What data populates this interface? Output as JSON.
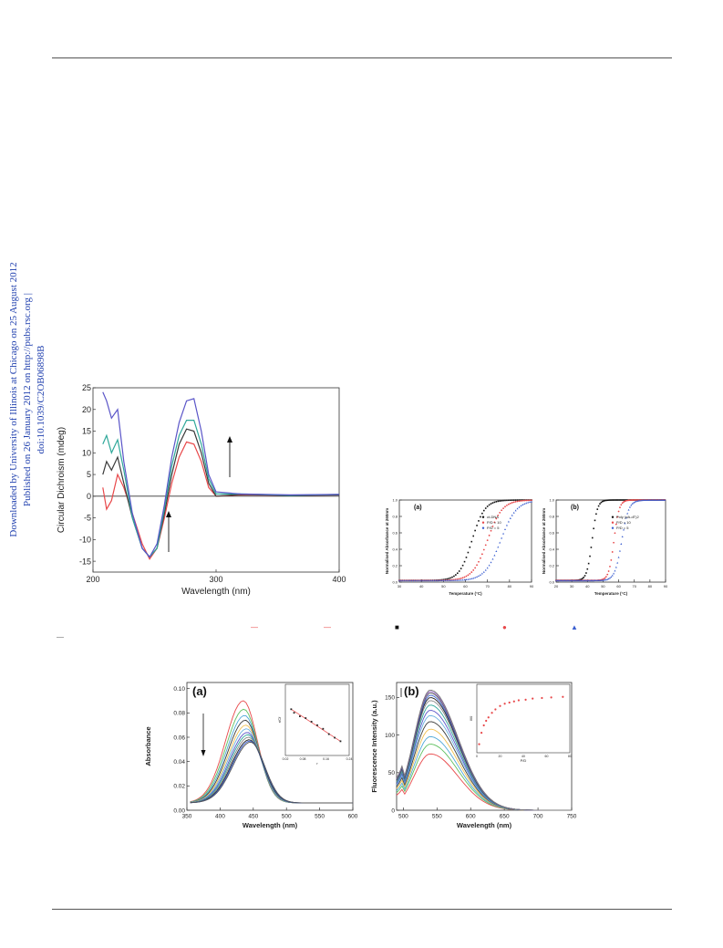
{
  "sidebar": {
    "line1": "Downloaded by University of Illinois at Chicago on 25 August 2012",
    "line2": "Published on 26 January 2012 on http://pubs.rsc.org | doi:10.1039/C2OB06898B"
  },
  "markers": [
    "—",
    "—",
    "■",
    "●",
    "▲"
  ],
  "colors": {
    "red": "#e8484a",
    "black": "#3a3a3a",
    "teal": "#2fa89a",
    "purple": "#5a55c8",
    "blue": "#3b5fd0"
  },
  "chart_data": [
    {
      "id": "cd",
      "type": "line",
      "xlabel": "Wavelength (nm)",
      "ylabel": "Circular Dichroism (mdeg)",
      "xlim": [
        200,
        400
      ],
      "ylim": [
        -17.5,
        25
      ],
      "xticks": [
        200,
        300,
        400
      ],
      "yticks": [
        -15,
        -10,
        -5,
        0,
        5,
        10,
        15,
        20,
        25
      ],
      "series": [
        {
          "color": "#e8484a",
          "points": [
            [
              208,
              2
            ],
            [
              211,
              -3
            ],
            [
              215,
              -1
            ],
            [
              220,
              5
            ],
            [
              225,
              2
            ],
            [
              232,
              -4
            ],
            [
              240,
              -11
            ],
            [
              246,
              -14.5
            ],
            [
              252,
              -12
            ],
            [
              258,
              -5
            ],
            [
              264,
              3
            ],
            [
              270,
              9
            ],
            [
              276,
              12.5
            ],
            [
              282,
              12
            ],
            [
              288,
              8
            ],
            [
              294,
              2
            ],
            [
              300,
              0
            ],
            [
              320,
              0.3
            ],
            [
              360,
              0.2
            ],
            [
              400,
              0.3
            ]
          ]
        },
        {
          "color": "#3a3a3a",
          "points": [
            [
              208,
              5
            ],
            [
              211,
              8
            ],
            [
              215,
              6
            ],
            [
              220,
              9
            ],
            [
              225,
              3
            ],
            [
              232,
              -5
            ],
            [
              240,
              -12
            ],
            [
              246,
              -14
            ],
            [
              252,
              -12
            ],
            [
              258,
              -4
            ],
            [
              264,
              5
            ],
            [
              270,
              12
            ],
            [
              276,
              15.5
            ],
            [
              282,
              15
            ],
            [
              288,
              10
            ],
            [
              294,
              3
            ],
            [
              300,
              0
            ],
            [
              320,
              0.4
            ],
            [
              360,
              0.2
            ],
            [
              400,
              0.3
            ]
          ]
        },
        {
          "color": "#2fa89a",
          "points": [
            [
              208,
              12
            ],
            [
              211,
              14
            ],
            [
              215,
              10
            ],
            [
              220,
              13
            ],
            [
              225,
              6
            ],
            [
              232,
              -5
            ],
            [
              240,
              -12
            ],
            [
              246,
              -14
            ],
            [
              252,
              -12
            ],
            [
              258,
              -3
            ],
            [
              264,
              7
            ],
            [
              270,
              14
            ],
            [
              276,
              17.5
            ],
            [
              282,
              17.5
            ],
            [
              288,
              12
            ],
            [
              294,
              4
            ],
            [
              300,
              0.5
            ],
            [
              320,
              0.5
            ],
            [
              360,
              0.2
            ],
            [
              400,
              0.4
            ]
          ]
        },
        {
          "color": "#5a55c8",
          "points": [
            [
              208,
              24
            ],
            [
              211,
              22
            ],
            [
              215,
              18
            ],
            [
              220,
              20
            ],
            [
              225,
              8
            ],
            [
              232,
              -4
            ],
            [
              240,
              -12
            ],
            [
              246,
              -14
            ],
            [
              252,
              -11
            ],
            [
              258,
              -2
            ],
            [
              264,
              9
            ],
            [
              270,
              17
            ],
            [
              276,
              22
            ],
            [
              282,
              22.5
            ],
            [
              288,
              15
            ],
            [
              294,
              5
            ],
            [
              300,
              1
            ],
            [
              320,
              0.5
            ],
            [
              360,
              0.3
            ],
            [
              400,
              0.4
            ]
          ]
        }
      ]
    },
    {
      "id": "melt-a",
      "type": "scatter",
      "panel": "(a)",
      "xlabel": "Temperature (°C)",
      "ylabel": "Normalised Absorbance at 260nm",
      "xlim": [
        30,
        90
      ],
      "ylim": [
        0,
        1.0
      ],
      "xticks": [
        30,
        40,
        50,
        60,
        70,
        80,
        90
      ],
      "yticks": [
        0.0,
        0.2,
        0.4,
        0.6,
        0.8,
        1.0
      ],
      "legend": [
        "ct-DNA",
        "P/D = 10",
        "P/D = 5"
      ],
      "series": [
        {
          "color": "#111111",
          "shape": "square",
          "mid": 63,
          "k": 0.35
        },
        {
          "color": "#e8484a",
          "shape": "circle",
          "mid": 70,
          "k": 0.3
        },
        {
          "color": "#3b5fd0",
          "shape": "triangle",
          "mid": 76,
          "k": 0.28
        }
      ]
    },
    {
      "id": "melt-b",
      "type": "scatter",
      "panel": "(b)",
      "xlabel": "Temperature (°C)",
      "ylabel": "Normalised Absorbance at 260nm",
      "xlim": [
        20,
        90
      ],
      "ylim": [
        0,
        1.0
      ],
      "xticks": [
        20,
        30,
        40,
        50,
        60,
        70,
        80,
        90
      ],
      "yticks": [
        0.0,
        0.2,
        0.4,
        0.6,
        0.8,
        1.0
      ],
      "legend": [
        "Poly (dA-dT)2",
        "P/D = 10",
        "P/D = 5"
      ],
      "series": [
        {
          "color": "#111111",
          "shape": "square",
          "mid": 43,
          "k": 0.6
        },
        {
          "color": "#e8484a",
          "shape": "circle",
          "mid": 57,
          "k": 0.6
        },
        {
          "color": "#3b5fd0",
          "shape": "triangle",
          "mid": 62,
          "k": 0.45
        }
      ]
    },
    {
      "id": "abs",
      "type": "line",
      "panel": "(a)",
      "xlabel": "Wavelength (nm)",
      "ylabel": "Absorbance",
      "xlim": [
        350,
        600
      ],
      "ylim": [
        0,
        0.105
      ],
      "xticks": [
        350,
        400,
        450,
        500,
        550,
        600
      ],
      "yticks": [
        0.0,
        0.02,
        0.04,
        0.06,
        0.08,
        0.1
      ],
      "peaks": [
        0.09,
        0.083,
        0.078,
        0.074,
        0.07,
        0.067,
        0.064,
        0.062,
        0.06,
        0.058,
        0.057,
        0.056
      ],
      "peak_x": [
        435,
        436,
        437,
        438,
        439,
        440,
        441,
        442,
        443,
        444,
        445,
        446
      ],
      "colors": [
        "#e8484a",
        "#5fc05f",
        "#4fa8d8",
        "#3a3a3a",
        "#f0c050",
        "#6ab0e0",
        "#5a55c8",
        "#2fa89a",
        "#888888",
        "#222222",
        "#3b5fd0",
        "#555555"
      ],
      "inset": {
        "xlabel": "r",
        "ylabel": "r/Cf",
        "xlim": [
          0.02,
          0.24
        ],
        "ylim": [
          0.1,
          0.3
        ],
        "xticks": [
          0.02,
          0.08,
          0.16,
          0.24
        ],
        "points": [
          [
            0.04,
            0.23
          ],
          [
            0.05,
            0.22
          ],
          [
            0.07,
            0.21
          ],
          [
            0.09,
            0.205
          ],
          [
            0.11,
            0.195
          ],
          [
            0.13,
            0.185
          ],
          [
            0.15,
            0.175
          ],
          [
            0.17,
            0.16
          ],
          [
            0.19,
            0.15
          ],
          [
            0.21,
            0.14
          ]
        ]
      }
    },
    {
      "id": "fl",
      "type": "line",
      "panel": "(b)",
      "xlabel": "Wavelength (nm)",
      "ylabel": "Fluorescence Intensity (a.u.)",
      "xlim": [
        490,
        750
      ],
      "ylim": [
        0,
        170
      ],
      "xticks": [
        500,
        550,
        600,
        650,
        700,
        750
      ],
      "yticks": [
        0,
        50,
        100,
        150
      ],
      "peaks": [
        75,
        88,
        98,
        108,
        118,
        126,
        133,
        140,
        146,
        150,
        153,
        156,
        158,
        160
      ],
      "colors": [
        "#e8484a",
        "#5fc05f",
        "#4fa8d8",
        "#f0c050",
        "#3a3a3a",
        "#6ab0e0",
        "#5a55c8",
        "#2fa89a",
        "#888888",
        "#222222",
        "#3b5fd0",
        "#555555",
        "#9a6ac8",
        "#777777"
      ],
      "inset": {
        "xlabel": "P/D",
        "ylabel": "I/I0",
        "xlim": [
          0,
          80
        ],
        "ylim": [
          1.0,
          2.2
        ],
        "xticks": [
          0,
          20,
          40,
          60,
          80
        ],
        "points": [
          [
            2,
            1.15
          ],
          [
            4,
            1.35
          ],
          [
            6,
            1.48
          ],
          [
            8,
            1.56
          ],
          [
            10,
            1.62
          ],
          [
            13,
            1.7
          ],
          [
            16,
            1.76
          ],
          [
            20,
            1.82
          ],
          [
            24,
            1.86
          ],
          [
            28,
            1.88
          ],
          [
            32,
            1.9
          ],
          [
            36,
            1.92
          ],
          [
            42,
            1.93
          ],
          [
            48,
            1.95
          ],
          [
            56,
            1.96
          ],
          [
            64,
            1.97
          ],
          [
            74,
            1.98
          ]
        ]
      }
    }
  ]
}
